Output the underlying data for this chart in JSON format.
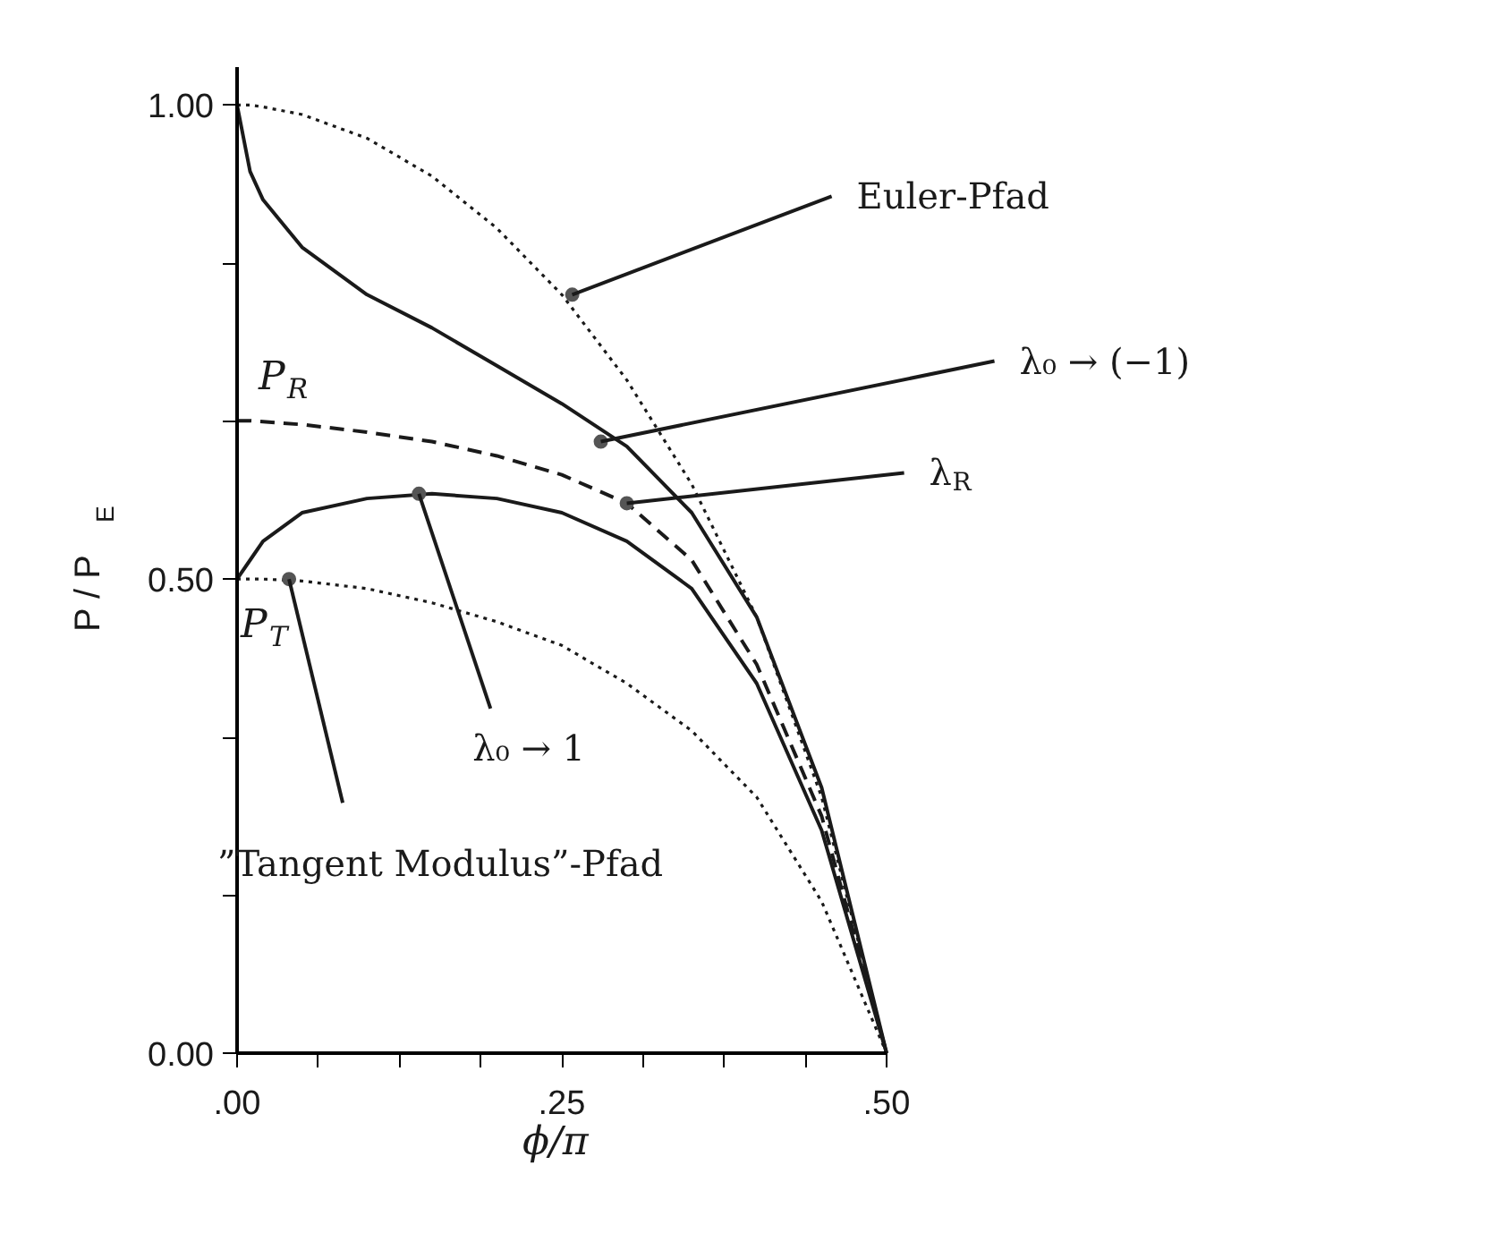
{
  "chart_data": {
    "type": "line",
    "xlabel": "ϕ/π",
    "ylabel": "P / P$_{E}$",
    "x": [
      0,
      0.01,
      0.02,
      0.05,
      0.1,
      0.15,
      0.2,
      0.25,
      0.3,
      0.35,
      0.4,
      0.45,
      0.5
    ],
    "series": [
      {
        "color": "#1a1a1a",
        "line_style": "dotted",
        "values": [
          1.0,
          1.0,
          0.998,
          0.99,
          0.965,
          0.925,
          0.87,
          0.8,
          0.71,
          0.6,
          0.46,
          0.27,
          0
        ]
      },
      {
        "color": "#1a1a1a",
        "line_style": "solid",
        "values": [
          1.0,
          0.93,
          0.9,
          0.85,
          0.8,
          0.765,
          0.725,
          0.685,
          0.64,
          0.57,
          0.46,
          0.28,
          0
        ]
      },
      {
        "color": "#1a1a1a",
        "line_style": "dashed",
        "values": [
          0.667,
          0.667,
          0.666,
          0.663,
          0.655,
          0.645,
          0.63,
          0.61,
          0.58,
          0.52,
          0.41,
          0.25,
          0
        ]
      },
      {
        "color": "#1a1a1a",
        "line_style": "solid",
        "values": [
          0.5,
          0.52,
          0.54,
          0.57,
          0.585,
          0.59,
          0.585,
          0.57,
          0.54,
          0.49,
          0.39,
          0.235,
          0
        ]
      },
      {
        "color": "#1a1a1a",
        "line_style": "dotted",
        "values": [
          0.5,
          0.5,
          0.5,
          0.498,
          0.49,
          0.475,
          0.455,
          0.43,
          0.39,
          0.34,
          0.27,
          0.16,
          0
        ]
      }
    ],
    "xlim": [
      0,
      0.5
    ],
    "ylim": [
      0,
      1.04
    ],
    "xticks": [
      {
        "value": 0,
        "label": ".00"
      },
      {
        "value": 0.0625,
        "label": null
      },
      {
        "value": 0.125,
        "label": null
      },
      {
        "value": 0.1875,
        "label": null
      },
      {
        "value": 0.25,
        "label": ".25"
      },
      {
        "value": 0.3125,
        "label": null
      },
      {
        "value": 0.375,
        "label": null
      },
      {
        "value": 0.4375,
        "label": null
      },
      {
        "value": 0.5,
        "label": ".50"
      }
    ],
    "yticks": [
      {
        "value": 0,
        "label": "0.00"
      },
      {
        "value": 0.167,
        "label": null
      },
      {
        "value": 0.333,
        "label": null
      },
      {
        "value": 0.5,
        "label": "0.50"
      },
      {
        "value": 0.667,
        "label": null
      },
      {
        "value": 0.833,
        "label": null
      },
      {
        "value": 1.0,
        "label": "1.00"
      }
    ],
    "grid": false,
    "annotations": [
      {
        "text": "Euler-Pfad",
        "x": 0.258,
        "y": 0.8
      },
      {
        "text": "λ₀ → (−1)",
        "x": 0.28,
        "y": 0.645
      },
      {
        "text": "λ$_{R}$",
        "x": 0.3,
        "y": 0.58
      },
      {
        "text": "λ₀ → 1",
        "x": 0.14,
        "y": 0.59
      },
      {
        "text": "”Tangent Modulus”-Pfad",
        "x": 0.04,
        "y": 0.5
      },
      {
        "text": "P$_{R}$",
        "x": 0,
        "y": 0.667
      },
      {
        "text": "P$_{T}$",
        "x": 0,
        "y": 0.5
      }
    ]
  }
}
